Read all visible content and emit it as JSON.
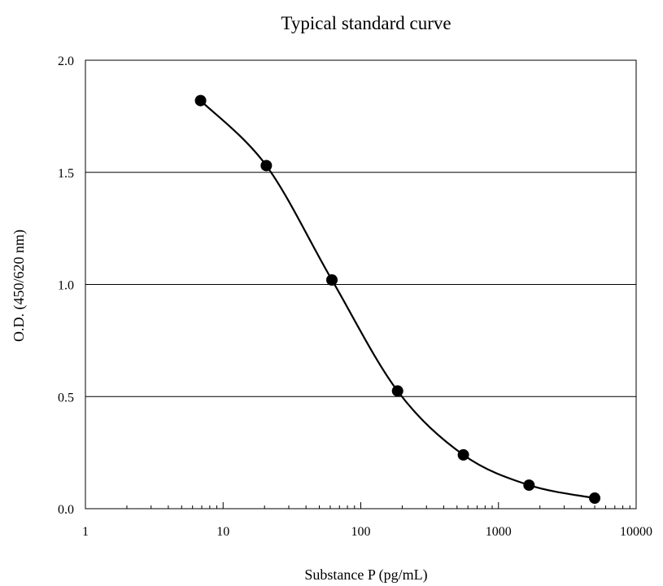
{
  "chart_data": {
    "type": "scatter",
    "title": "Typical standard curve",
    "xlabel": "Substance P (pg/mL)",
    "ylabel": "O.D. (450/620 nm)",
    "xscale": "log",
    "xlim": [
      1,
      10000
    ],
    "ylim": [
      0,
      2.0
    ],
    "x_tick_labels": [
      "1",
      "10",
      "100",
      "1000",
      "10000"
    ],
    "y_tick_labels": [
      "0.0",
      "0.5",
      "1.0",
      "1.5",
      "2.0"
    ],
    "grid": "horizontal major gridlines",
    "legend": "none",
    "smooth_curve": true,
    "colors": {
      "points": "#000000",
      "curve": "#000000",
      "grid": "#000000"
    },
    "series": [
      {
        "x": [
          6.86,
          20.6,
          61.7,
          185,
          556,
          1667,
          5000
        ],
        "y": [
          1.82,
          1.53,
          1.02,
          0.525,
          0.24,
          0.105,
          0.047
        ]
      }
    ]
  }
}
